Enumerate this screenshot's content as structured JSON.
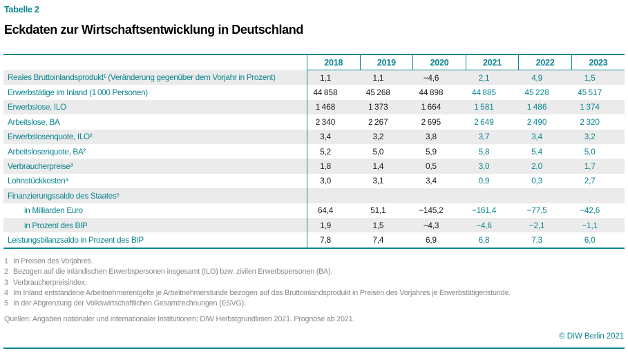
{
  "header": {
    "table_label": "Tabelle 2",
    "title": "Eckdaten zur Wirtschaftsentwicklung in Deutschland"
  },
  "table": {
    "years": [
      "2018",
      "2019",
      "2020",
      "2021",
      "2022",
      "2023"
    ],
    "forecast_from_index": 3,
    "rows": [
      {
        "label": "Reales Bruttoinlandsprodukt¹ (Veränderung gegenüber dem Vorjahr in Prozent)",
        "indent": false,
        "values": [
          "1,1",
          "1,1",
          "−4,6",
          "2,1",
          "4,9",
          "1,5"
        ]
      },
      {
        "label": "Erwerbstätige im Inland (1 000 Personen)",
        "indent": false,
        "values": [
          "44 858",
          "45 268",
          "44 898",
          "44 885",
          "45 228",
          "45 517"
        ]
      },
      {
        "label": "Erwerbslose, ILO",
        "indent": false,
        "values": [
          "1 468",
          "1 373",
          "1 664",
          "1 581",
          "1 486",
          "1 374"
        ]
      },
      {
        "label": "Arbeitslose, BA",
        "indent": false,
        "values": [
          "2 340",
          "2 267",
          "2 695",
          "2 649",
          "2 490",
          "2 320"
        ]
      },
      {
        "label": "Erwerbslosenquote, ILO²",
        "indent": false,
        "values": [
          "3,4",
          "3,2",
          "3,8",
          "3,7",
          "3,4",
          "3,2"
        ]
      },
      {
        "label": "Arbeitslosenquote, BA²",
        "indent": false,
        "values": [
          "5,2",
          "5,0",
          "5,9",
          "5,8",
          "5,4",
          "5,0"
        ]
      },
      {
        "label": "Verbraucherpreise³",
        "indent": false,
        "values": [
          "1,8",
          "1,4",
          "0,5",
          "3,0",
          "2,0",
          "1,7"
        ]
      },
      {
        "label": "Lohnstückkosten⁴",
        "indent": false,
        "values": [
          "3,0",
          "3,1",
          "3,4",
          "0,9",
          "0,3",
          "2,7"
        ]
      },
      {
        "label": "Finanzierungssaldo des Staates⁵",
        "indent": false,
        "values": [
          "",
          "",
          "",
          "",
          "",
          ""
        ]
      },
      {
        "label": "in Milliarden Euro",
        "indent": true,
        "values": [
          "64,4",
          "51,1",
          "−145,2",
          "−161,4",
          "−77,5",
          "−42,6"
        ]
      },
      {
        "label": "in Prozent des BIP",
        "indent": true,
        "values": [
          "1,9",
          "1,5",
          "−4,3",
          "−4,6",
          "−2,1",
          "−1,1"
        ]
      },
      {
        "label": "Leistungsbilanzsaldo in Prozent des BIP",
        "indent": false,
        "values": [
          "7,8",
          "7,4",
          "6,9",
          "6,8",
          "7,3",
          "6,0"
        ]
      }
    ]
  },
  "chart_data": {
    "type": "table",
    "title": "Eckdaten zur Wirtschaftsentwicklung in Deutschland",
    "columns": [
      "2018",
      "2019",
      "2020",
      "2021",
      "2022",
      "2023"
    ],
    "forecast_from": "2021",
    "rows": [
      {
        "name": "Reales Bruttoinlandsprodukt (Veränderung gegenüber dem Vorjahr in Prozent)",
        "values": [
          1.1,
          1.1,
          -4.6,
          2.1,
          4.9,
          1.5
        ]
      },
      {
        "name": "Erwerbstätige im Inland (1000 Personen)",
        "values": [
          44858,
          45268,
          44898,
          44885,
          45228,
          45517
        ]
      },
      {
        "name": "Erwerbslose, ILO",
        "values": [
          1468,
          1373,
          1664,
          1581,
          1486,
          1374
        ]
      },
      {
        "name": "Arbeitslose, BA",
        "values": [
          2340,
          2267,
          2695,
          2649,
          2490,
          2320
        ]
      },
      {
        "name": "Erwerbslosenquote, ILO",
        "values": [
          3.4,
          3.2,
          3.8,
          3.7,
          3.4,
          3.2
        ]
      },
      {
        "name": "Arbeitslosenquote, BA",
        "values": [
          5.2,
          5.0,
          5.9,
          5.8,
          5.4,
          5.0
        ]
      },
      {
        "name": "Verbraucherpreise",
        "values": [
          1.8,
          1.4,
          0.5,
          3.0,
          2.0,
          1.7
        ]
      },
      {
        "name": "Lohnstückkosten",
        "values": [
          3.0,
          3.1,
          3.4,
          0.9,
          0.3,
          2.7
        ]
      },
      {
        "name": "Finanzierungssaldo des Staates",
        "values": [
          null,
          null,
          null,
          null,
          null,
          null
        ]
      },
      {
        "name": "Finanzierungssaldo des Staates in Milliarden Euro",
        "values": [
          64.4,
          51.1,
          -145.2,
          -161.4,
          -77.5,
          -42.6
        ]
      },
      {
        "name": "Finanzierungssaldo des Staates in Prozent des BIP",
        "values": [
          1.9,
          1.5,
          -4.3,
          -4.6,
          -2.1,
          -1.1
        ]
      },
      {
        "name": "Leistungsbilanzsaldo in Prozent des BIP",
        "values": [
          7.8,
          7.4,
          6.9,
          6.8,
          7.3,
          6.0
        ]
      }
    ]
  },
  "footnotes": [
    {
      "num": "1",
      "text": "In Preisen des Vorjahres."
    },
    {
      "num": "2",
      "text": "Bezogen auf die inländischen Erwerbspersonen insgesamt (ILO) bzw. zivilen Erwerbspersonen (BA)."
    },
    {
      "num": "3",
      "text": "Verbraucherpreisindex."
    },
    {
      "num": "4",
      "text": "Im Inland entstandene Arbeitnehmerentgelte je Arbeitnehmerstunde bezogen auf das Bruttoinlandsprodukt in Preisen des Vorjahres je Erwerbstätigenstunde."
    },
    {
      "num": "5",
      "text": "In der Abgrenzung der Volkswirtschaftlichen Gesamtrechnungen (ESVG)."
    }
  ],
  "sources": "Quellen: Angaben nationaler und internationaler Institutionen; DIW Herbstgrundlinien 2021. Prognose ab 2021.",
  "footer": {
    "copyright": "© DIW Berlin 2021"
  },
  "colors": {
    "accent_teal": "#0c8591",
    "row_stripe": "#ebebeb",
    "value_past": "#1a1a1a",
    "footnote_gray": "#878787"
  }
}
